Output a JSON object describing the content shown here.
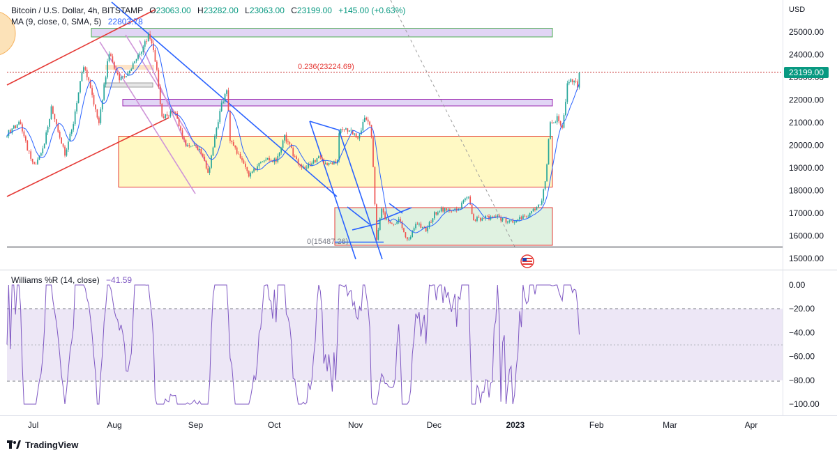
{
  "colors": {
    "candle_up": "#26a69a",
    "candle_down": "#ef5350",
    "ma_line": "#2962ff",
    "wr_line": "#7e57c2",
    "wr_band": "#ede7f6",
    "price_badge": "#089981",
    "trend_red": "#e53935",
    "trend_blue": "#2962ff",
    "channel_violet": "#ce93d8",
    "zone_yellow": "#fff9c4",
    "zone_green": "#e0f2e1",
    "zone_purple": "#e1d5f5"
  },
  "header": {
    "symbol": "Bitcoin / U.S. Dollar, 4h, BITSTAMP",
    "o_label": "O",
    "o_value": "23063.00",
    "h_label": "H",
    "h_value": "23282.00",
    "l_label": "L",
    "l_value": "23063.00",
    "c_label": "C",
    "c_value": "23199.00",
    "change": "+145.00 (+0.63%)",
    "ma_label": "MA (9, close, 0, SMA, 5)",
    "ma_value": "22803.78"
  },
  "price_axis": {
    "currency": "USD",
    "last_price_badge": "23199.00"
  },
  "fib_labels": {
    "top": "0.236(23224.69)",
    "bottom": "0(15487.26)"
  },
  "wr_header": {
    "label": "Williams %R (14, close)",
    "value": "−41.59"
  },
  "branding": {
    "name": "TradingView"
  },
  "chart_data": [
    {
      "type": "candlestick",
      "title": "Bitcoin / U.S. Dollar, 4h, BITSTAMP",
      "ylabel": "USD",
      "ylim": [
        14500,
        26000
      ],
      "y_ticks": [
        "15000.00",
        "16000.00",
        "17000.00",
        "18000.00",
        "19000.00",
        "20000.00",
        "21000.00",
        "22000.00",
        "23000.00",
        "24000.00",
        "25000.00"
      ],
      "y_tick_values": [
        15000,
        16000,
        17000,
        18000,
        19000,
        20000,
        21000,
        22000,
        23000,
        24000,
        25000
      ],
      "x_ticks": [
        "Jul",
        "Aug",
        "Sep",
        "Oct",
        "Nov",
        "Dec",
        "2023",
        "Feb",
        "Mar",
        "Apr"
      ],
      "x_tick_dates": [
        "2022-07-01",
        "2022-08-01",
        "2022-09-01",
        "2022-10-01",
        "2022-11-01",
        "2022-12-01",
        "2023-01-01",
        "2023-02-01",
        "2023-03-01",
        "2023-04-01"
      ],
      "x_range": [
        "2022-06-21",
        "2023-04-13"
      ],
      "price_path": [
        [
          "2022-06-21",
          20500
        ],
        [
          "2022-06-26",
          21000
        ],
        [
          "2022-06-30",
          19400
        ],
        [
          "2022-07-02",
          19200
        ],
        [
          "2022-07-05",
          20000
        ],
        [
          "2022-07-08",
          21700
        ],
        [
          "2022-07-13",
          19600
        ],
        [
          "2022-07-16",
          20800
        ],
        [
          "2022-07-20",
          23600
        ],
        [
          "2022-07-23",
          22500
        ],
        [
          "2022-07-26",
          21000
        ],
        [
          "2022-07-30",
          24100
        ],
        [
          "2022-08-03",
          22900
        ],
        [
          "2022-08-06",
          23200
        ],
        [
          "2022-08-10",
          23900
        ],
        [
          "2022-08-14",
          24900
        ],
        [
          "2022-08-17",
          23600
        ],
        [
          "2022-08-19",
          21200
        ],
        [
          "2022-08-24",
          21500
        ],
        [
          "2022-08-28",
          20000
        ],
        [
          "2022-09-01",
          20100
        ],
        [
          "2022-09-06",
          18800
        ],
        [
          "2022-09-10",
          21400
        ],
        [
          "2022-09-13",
          22600
        ],
        [
          "2022-09-14",
          20200
        ],
        [
          "2022-09-18",
          19500
        ],
        [
          "2022-09-21",
          18700
        ],
        [
          "2022-09-28",
          19400
        ],
        [
          "2022-10-02",
          19300
        ],
        [
          "2022-10-05",
          20400
        ],
        [
          "2022-10-10",
          19200
        ],
        [
          "2022-10-13",
          19000
        ],
        [
          "2022-10-18",
          19500
        ],
        [
          "2022-10-21",
          19100
        ],
        [
          "2022-10-25",
          19300
        ],
        [
          "2022-10-26",
          20800
        ],
        [
          "2022-10-30",
          20600
        ],
        [
          "2022-11-02",
          20300
        ],
        [
          "2022-11-05",
          21300
        ],
        [
          "2022-11-07",
          20600
        ],
        [
          "2022-11-08",
          18500
        ],
        [
          "2022-11-09",
          15800
        ],
        [
          "2022-11-11",
          17100
        ],
        [
          "2022-11-14",
          16500
        ],
        [
          "2022-11-18",
          16700
        ],
        [
          "2022-11-21",
          15700
        ],
        [
          "2022-11-24",
          16600
        ],
        [
          "2022-11-28",
          16200
        ],
        [
          "2022-12-01",
          17000
        ],
        [
          "2022-12-05",
          17200
        ],
        [
          "2022-12-10",
          17100
        ],
        [
          "2022-12-14",
          17900
        ],
        [
          "2022-12-16",
          16700
        ],
        [
          "2022-12-20",
          16800
        ],
        [
          "2022-12-25",
          16850
        ],
        [
          "2022-12-30",
          16600
        ],
        [
          "2023-01-04",
          16800
        ],
        [
          "2023-01-08",
          17100
        ],
        [
          "2023-01-11",
          17400
        ],
        [
          "2023-01-13",
          19000
        ],
        [
          "2023-01-14",
          20900
        ],
        [
          "2023-01-17",
          21200
        ],
        [
          "2023-01-19",
          20700
        ],
        [
          "2023-01-21",
          22900
        ],
        [
          "2023-01-23",
          22800
        ],
        [
          "2023-01-25",
          22600
        ],
        [
          "2023-01-26",
          23199
        ]
      ],
      "series": [
        {
          "name": "MA (9, close, 0, SMA, 5)",
          "last_value": 22803.78
        }
      ],
      "price_levels": [
        {
          "label": "0.236(23224.69)",
          "value": 23224.69
        },
        {
          "label": "0(15487.26)",
          "value": 15487.26
        }
      ],
      "last_price": 23199.0
    },
    {
      "type": "line",
      "title": "Williams %R (14, close)",
      "ylim": [
        -105,
        5
      ],
      "y_ticks": [
        "0.00",
        "−20.00",
        "−40.00",
        "−60.00",
        "−80.00",
        "−100.00"
      ],
      "y_tick_values": [
        0,
        -20,
        -40,
        -60,
        -80,
        -100
      ],
      "bands": [
        -20,
        -50,
        -80
      ],
      "last_value": -41.59,
      "note_marks": [
        "2022-07-04",
        "2022-07-12",
        "2022-07-19",
        "2022-07-28",
        "2022-08-05",
        "2022-08-13",
        "2022-08-21",
        "2022-08-30",
        "2022-09-08",
        "2022-09-13",
        "2022-09-21",
        "2022-09-30",
        "2022-10-08",
        "2022-10-16",
        "2022-10-24",
        "2022-11-01",
        "2022-11-09",
        "2022-11-17",
        "2022-11-25",
        "2022-12-03",
        "2022-12-12",
        "2022-12-20",
        "2022-12-28",
        "2023-01-05",
        "2023-01-13",
        "2023-01-21",
        "2023-01-26"
      ]
    }
  ]
}
